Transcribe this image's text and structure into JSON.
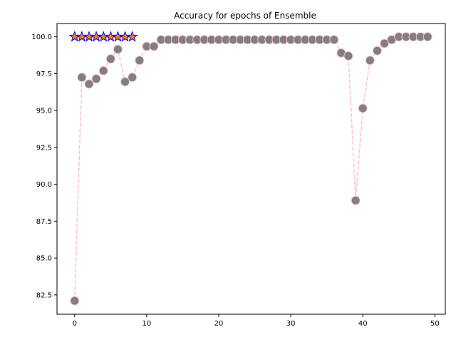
{
  "chart_data": {
    "type": "line",
    "title": "Accuracy for epochs of Ensemble",
    "xlabel": "",
    "ylabel": "",
    "xlim": [
      -2.45,
      51.45
    ],
    "ylim": [
      81.19,
      100.9
    ],
    "xticks": [
      0,
      10,
      20,
      30,
      40,
      50
    ],
    "yticks": [
      82.5,
      85.0,
      87.5,
      90.0,
      92.5,
      95.0,
      97.5,
      100.0
    ],
    "grid": false,
    "series": [
      {
        "style": "dashed line with circle markers",
        "line_color": "#ffc0cb",
        "marker_color": "#808080",
        "marker_edge_color": "#ffc0cb",
        "x": [
          0,
          1,
          2,
          3,
          4,
          5,
          6,
          7,
          8,
          9,
          10,
          11,
          12,
          13,
          14,
          15,
          16,
          17,
          18,
          19,
          20,
          21,
          22,
          23,
          24,
          25,
          26,
          27,
          28,
          29,
          30,
          31,
          32,
          33,
          34,
          35,
          36,
          37,
          38,
          39,
          40,
          41,
          42,
          43,
          44,
          45,
          46,
          47,
          48,
          49
        ],
        "y": [
          82.1,
          97.25,
          96.8,
          97.15,
          97.7,
          98.5,
          99.15,
          96.95,
          97.25,
          98.4,
          99.35,
          99.35,
          99.8,
          99.8,
          99.8,
          99.8,
          99.8,
          99.8,
          99.8,
          99.8,
          99.8,
          99.8,
          99.8,
          99.8,
          99.8,
          99.8,
          99.8,
          99.8,
          99.8,
          99.8,
          99.8,
          99.8,
          99.8,
          99.8,
          99.8,
          99.8,
          99.8,
          98.9,
          98.7,
          88.9,
          95.15,
          98.4,
          99.05,
          99.55,
          99.8,
          100.0,
          100.0,
          100.0,
          100.0,
          100.0
        ]
      },
      {
        "style": "solid line with star markers",
        "line_color": "#0000ff",
        "marker_color": "#ff7f0e",
        "marker_edge_color": "#0000ff",
        "x": [
          0,
          1,
          2,
          3,
          4,
          5,
          6,
          7,
          8
        ],
        "y": [
          100.0,
          100.0,
          100.0,
          100.0,
          100.0,
          100.0,
          100.0,
          100.0,
          100.0
        ]
      }
    ]
  }
}
